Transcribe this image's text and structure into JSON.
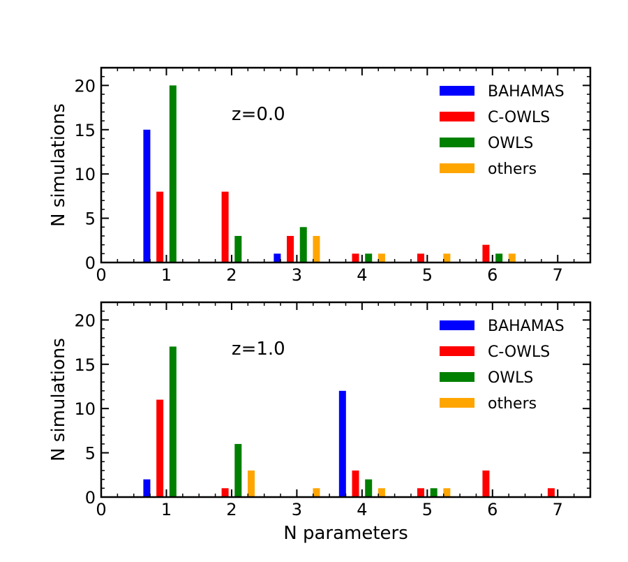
{
  "chart_data": [
    {
      "type": "bar",
      "annotation": "z=0.0",
      "xlabel": "",
      "ylabel": "N simulations",
      "xlim": [
        0,
        7.5
      ],
      "ylim": [
        0,
        22
      ],
      "x_ticks": [
        0,
        1,
        2,
        3,
        4,
        5,
        6,
        7
      ],
      "y_ticks": [
        0,
        5,
        10,
        15,
        20
      ],
      "legend_position": "top-right",
      "series": [
        {
          "name": "BAHAMAS",
          "color": "#0000ff",
          "offset": -0.3,
          "points": [
            [
              1,
              15
            ],
            [
              3,
              1
            ]
          ]
        },
        {
          "name": "C-OWLS",
          "color": "#ff0000",
          "offset": -0.1,
          "points": [
            [
              1,
              8
            ],
            [
              2,
              8
            ],
            [
              3,
              3
            ],
            [
              4,
              1
            ],
            [
              5,
              1
            ],
            [
              6,
              2
            ]
          ]
        },
        {
          "name": "OWLS",
          "color": "#008000",
          "offset": 0.1,
          "points": [
            [
              1,
              20
            ],
            [
              2,
              3
            ],
            [
              3,
              4
            ],
            [
              4,
              1
            ],
            [
              6,
              1
            ]
          ]
        },
        {
          "name": "others",
          "color": "#ffa500",
          "offset": 0.3,
          "points": [
            [
              3,
              3
            ],
            [
              4,
              1
            ],
            [
              5,
              1
            ],
            [
              6,
              1
            ]
          ]
        }
      ]
    },
    {
      "type": "bar",
      "annotation": "z=1.0",
      "xlabel": "N parameters",
      "ylabel": "N simulations",
      "xlim": [
        0,
        7.5
      ],
      "ylim": [
        0,
        22
      ],
      "x_ticks": [
        0,
        1,
        2,
        3,
        4,
        5,
        6,
        7
      ],
      "y_ticks": [
        0,
        5,
        10,
        15,
        20
      ],
      "legend_position": "top-right",
      "series": [
        {
          "name": "BAHAMAS",
          "color": "#0000ff",
          "offset": -0.3,
          "points": [
            [
              1,
              2
            ],
            [
              4,
              12
            ]
          ]
        },
        {
          "name": "C-OWLS",
          "color": "#ff0000",
          "offset": -0.1,
          "points": [
            [
              1,
              11
            ],
            [
              2,
              1
            ],
            [
              4,
              3
            ],
            [
              5,
              1
            ],
            [
              6,
              3
            ],
            [
              7,
              1
            ]
          ]
        },
        {
          "name": "OWLS",
          "color": "#008000",
          "offset": 0.1,
          "points": [
            [
              1,
              17
            ],
            [
              2,
              6
            ],
            [
              4,
              2
            ],
            [
              5,
              1
            ]
          ]
        },
        {
          "name": "others",
          "color": "#ffa500",
          "offset": 0.3,
          "points": [
            [
              2,
              3
            ],
            [
              3,
              1
            ],
            [
              4,
              1
            ],
            [
              5,
              1
            ]
          ]
        }
      ]
    }
  ]
}
